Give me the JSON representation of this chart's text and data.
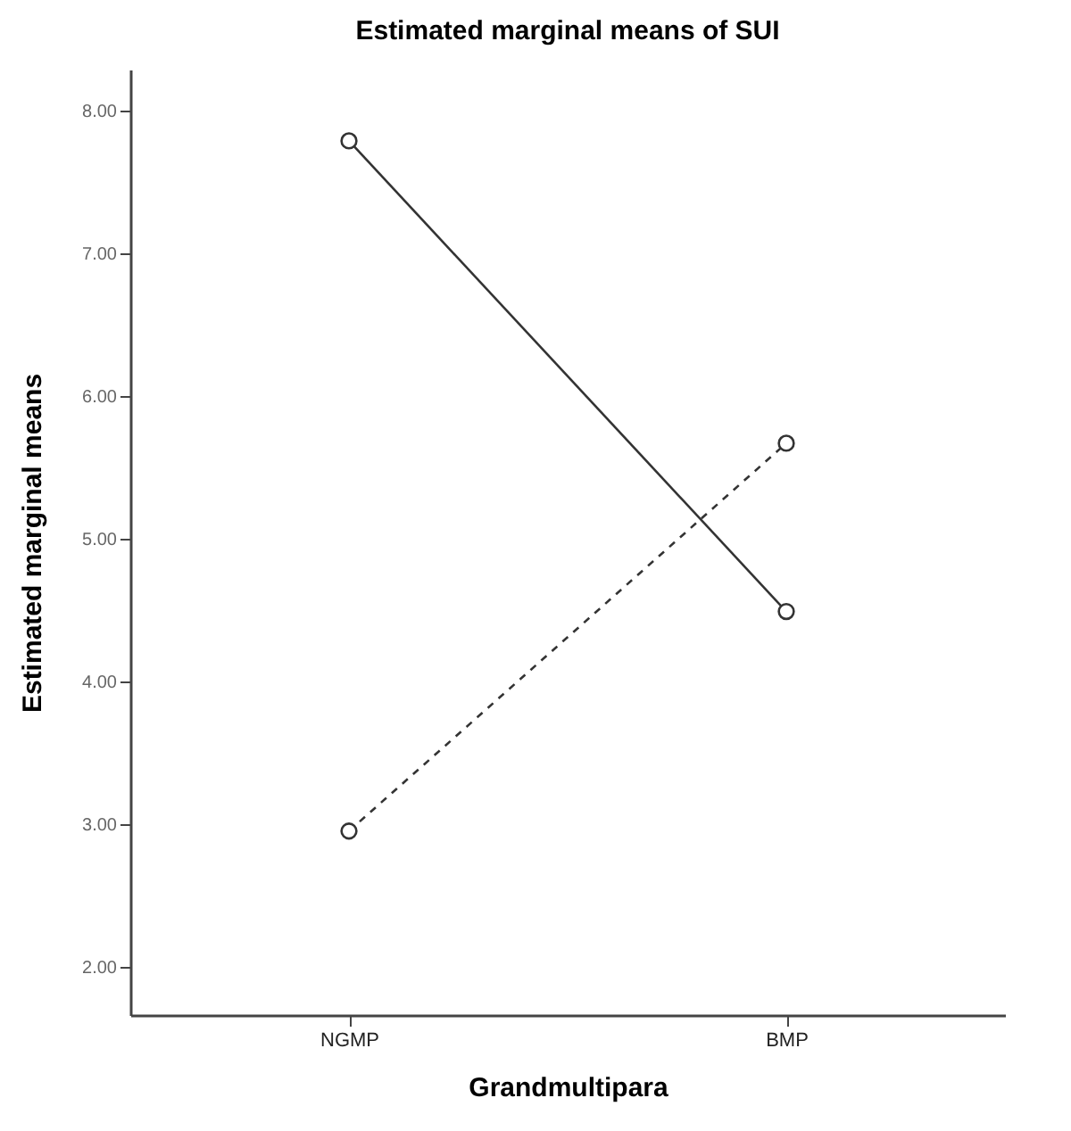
{
  "chart_data": {
    "type": "line",
    "title": "Estimated marginal means of SUI",
    "xlabel": "Grandmultipara",
    "ylabel": "Estimated marginal means",
    "categories": [
      "NGMP",
      "BMP"
    ],
    "series": [
      {
        "color": "#333333",
        "line_style": "solid",
        "values": [
          7.79,
          4.49
        ]
      },
      {
        "color": "#333333",
        "line_style": "dashed",
        "values": [
          2.95,
          5.67
        ]
      }
    ],
    "ylim": [
      1.66,
      8.29
    ],
    "yticks": [
      {
        "value": 2,
        "label": "2.00"
      },
      {
        "value": 3,
        "label": "3.00"
      },
      {
        "value": 4,
        "label": "4.00"
      },
      {
        "value": 5,
        "label": "5.00"
      },
      {
        "value": 6,
        "label": "6.00"
      },
      {
        "value": 7,
        "label": "7.00"
      },
      {
        "value": 8,
        "label": "8.00"
      }
    ],
    "marker": "circle",
    "grid": false
  }
}
